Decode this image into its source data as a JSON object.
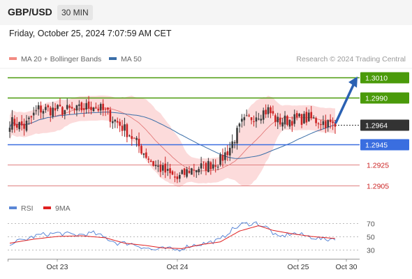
{
  "header": {
    "pair": "GBP/USD",
    "timeframe": "30 MIN"
  },
  "date_label": "Friday, October 25, 2024 7:07:59 AM CET",
  "legend": {
    "ma_bb": {
      "label": "MA 20 + Bollinger Bands",
      "color": "#f28b82"
    },
    "ma50": {
      "label": "MA 50",
      "color": "#3a6ea8"
    }
  },
  "credit": "Research © 2024 Trading Central",
  "rsi_legend": {
    "rsi": {
      "label": "RSI",
      "color": "#5b87d6"
    },
    "ma9": {
      "label": "9MA",
      "color": "#e02020"
    }
  },
  "colors": {
    "resistance": "#4a9a0a",
    "support": "#3a6ee0",
    "current": "#333333",
    "lower_level": "#e08080",
    "up_candle": "#3a3a3a",
    "down_candle": "#cc2222",
    "arrow": "#2b61b3",
    "bb_fill": "#fbd5d5"
  },
  "chart_data": {
    "type": "candlestick",
    "instrument": "GBP/USD",
    "interval": "30 MIN",
    "ylim": [
      1.2894,
      1.302
    ],
    "x_tick_labels": [
      "Oct 23",
      "Oct 24",
      "Oct 25",
      "Oct 30"
    ],
    "levels": [
      {
        "label": "1.3010",
        "value": 1.301,
        "kind": "resistance",
        "style": "solid"
      },
      {
        "label": "1.2990",
        "value": 1.299,
        "kind": "resistance",
        "style": "solid"
      },
      {
        "label": "1.2964",
        "value": 1.2964,
        "kind": "current",
        "style": "dotted"
      },
      {
        "label": "1.2945",
        "value": 1.2945,
        "kind": "support",
        "style": "solid"
      },
      {
        "label": "1.2925",
        "value": 1.2925,
        "kind": "support",
        "style": "solid"
      },
      {
        "label": "1.2905",
        "value": 1.2905,
        "kind": "support",
        "style": "solid"
      }
    ],
    "close_anchors": [
      [
        0,
        1.2967
      ],
      [
        6,
        1.2962
      ],
      [
        12,
        1.2979
      ],
      [
        20,
        1.2978
      ],
      [
        28,
        1.2978
      ],
      [
        35,
        1.2983
      ],
      [
        40,
        1.2976
      ],
      [
        45,
        1.2966
      ],
      [
        50,
        1.2955
      ],
      [
        55,
        1.294
      ],
      [
        60,
        1.2926
      ],
      [
        65,
        1.2918
      ],
      [
        70,
        1.2911
      ],
      [
        75,
        1.292
      ],
      [
        82,
        1.2924
      ],
      [
        88,
        1.2929
      ],
      [
        92,
        1.2942
      ],
      [
        97,
        1.2965
      ],
      [
        103,
        1.2974
      ],
      [
        108,
        1.2978
      ],
      [
        112,
        1.2967
      ],
      [
        118,
        1.2969
      ],
      [
        125,
        1.297
      ],
      [
        132,
        1.2966
      ],
      [
        136,
        1.2962
      ]
    ],
    "bars": 137,
    "forecast_arrow": {
      "from": 1.2966,
      "to": 1.3008
    },
    "rsi": {
      "ylim": [
        20,
        80
      ],
      "ticks": [
        70,
        50,
        30
      ],
      "rsi_anchors": [
        [
          0,
          40
        ],
        [
          6,
          45
        ],
        [
          12,
          52
        ],
        [
          20,
          55
        ],
        [
          28,
          52
        ],
        [
          35,
          55
        ],
        [
          40,
          48
        ],
        [
          45,
          40
        ],
        [
          50,
          40
        ],
        [
          55,
          35
        ],
        [
          60,
          30
        ],
        [
          65,
          32
        ],
        [
          70,
          30
        ],
        [
          75,
          36
        ],
        [
          82,
          40
        ],
        [
          88,
          45
        ],
        [
          92,
          58
        ],
        [
          97,
          68
        ],
        [
          103,
          70
        ],
        [
          108,
          62
        ],
        [
          112,
          48
        ],
        [
          118,
          55
        ],
        [
          125,
          50
        ],
        [
          132,
          45
        ],
        [
          136,
          48
        ]
      ],
      "ma9_anchors": [
        [
          0,
          40
        ],
        [
          10,
          46
        ],
        [
          20,
          50
        ],
        [
          30,
          51
        ],
        [
          40,
          48
        ],
        [
          48,
          40
        ],
        [
          56,
          37
        ],
        [
          64,
          33
        ],
        [
          72,
          32
        ],
        [
          80,
          38
        ],
        [
          88,
          42
        ],
        [
          96,
          58
        ],
        [
          104,
          66
        ],
        [
          110,
          59
        ],
        [
          118,
          54
        ],
        [
          126,
          50
        ],
        [
          136,
          47
        ]
      ]
    }
  }
}
